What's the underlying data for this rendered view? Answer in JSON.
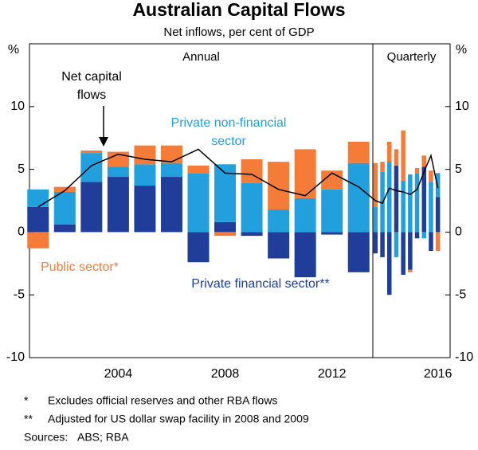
{
  "title": "Australian Capital Flows",
  "subtitle": "Net inflows, per cent of GDP",
  "footnotes": [
    [
      "*",
      "Excludes official reserves and other RBA flows"
    ],
    [
      "**",
      "Adjusted for US dollar swap facility in 2008 and 2009"
    ]
  ],
  "sources": [
    "Sources:",
    "ABS; RBA"
  ],
  "chart_data": [
    {
      "type": "bar",
      "stacked": true,
      "section": "Annual",
      "y_unit": "%",
      "ylim": [
        -10,
        15
      ],
      "yticks": [
        -10,
        -5,
        0,
        5,
        10
      ],
      "categories": [
        null,
        null,
        null,
        "2004",
        null,
        null,
        null,
        "2008",
        null,
        null,
        null,
        "2012",
        null
      ],
      "series": [
        {
          "name": [
            "Private financial sector**"
          ],
          "color": "#1f3d99",
          "values": [
            2.0,
            0.6,
            4.0,
            4.4,
            3.7,
            4.4,
            -2.4,
            0.8,
            -0.3,
            -2.1,
            -3.6,
            -0.2,
            -3.2
          ]
        },
        {
          "name": [
            "Private non-financial",
            "sector"
          ],
          "color": "#21a0dd",
          "values": [
            1.4,
            2.6,
            2.3,
            0.8,
            1.7,
            1.1,
            4.7,
            4.6,
            3.9,
            1.8,
            2.7,
            3.4,
            5.5
          ]
        },
        {
          "name": [
            "Public sector*"
          ],
          "color": "#f47b38",
          "values": [
            -1.3,
            0.4,
            0.2,
            1.2,
            1.5,
            1.4,
            0.6,
            -0.3,
            1.9,
            3.8,
            3.9,
            1.5,
            1.7
          ]
        },
        {
          "type": "line",
          "name": [
            "Net capital",
            "flows"
          ],
          "color": "#000000",
          "values": [
            2.0,
            3.3,
            5.3,
            6.2,
            5.8,
            5.6,
            6.6,
            4.7,
            4.6,
            3.4,
            2.9,
            4.7,
            3.6
          ]
        }
      ]
    },
    {
      "type": "bar",
      "stacked": true,
      "section": "Quarterly",
      "y_unit": "%",
      "ylim": [
        -10,
        15
      ],
      "yticks": [
        -10,
        -5,
        0,
        5,
        10
      ],
      "categories": [
        null,
        null,
        null,
        null,
        null,
        null,
        null,
        null,
        null,
        "2016"
      ],
      "series": [
        {
          "color": "#1f3d99",
          "values": [
            -1.7,
            -2.0,
            -5.0,
            5.3,
            -3.4,
            -3.0,
            -0.5,
            5.2,
            -1.5,
            2.8
          ]
        },
        {
          "color": "#21a0dd",
          "values": [
            2.0,
            4.8,
            5.6,
            -2.0,
            4.1,
            4.6,
            4.7,
            -0.5,
            4.0,
            1.9
          ]
        },
        {
          "color": "#f47b38",
          "values": [
            3.5,
            0.8,
            1.6,
            1.3,
            4.0,
            -0.2,
            0.4,
            0.9,
            0.9,
            -1.5
          ]
        },
        {
          "type": "line",
          "color": "#000000",
          "values": [
            2.5,
            2.3,
            3.5,
            3.3,
            3.2,
            3.0,
            3.4,
            4.8,
            6.1,
            3.5
          ]
        }
      ]
    }
  ]
}
